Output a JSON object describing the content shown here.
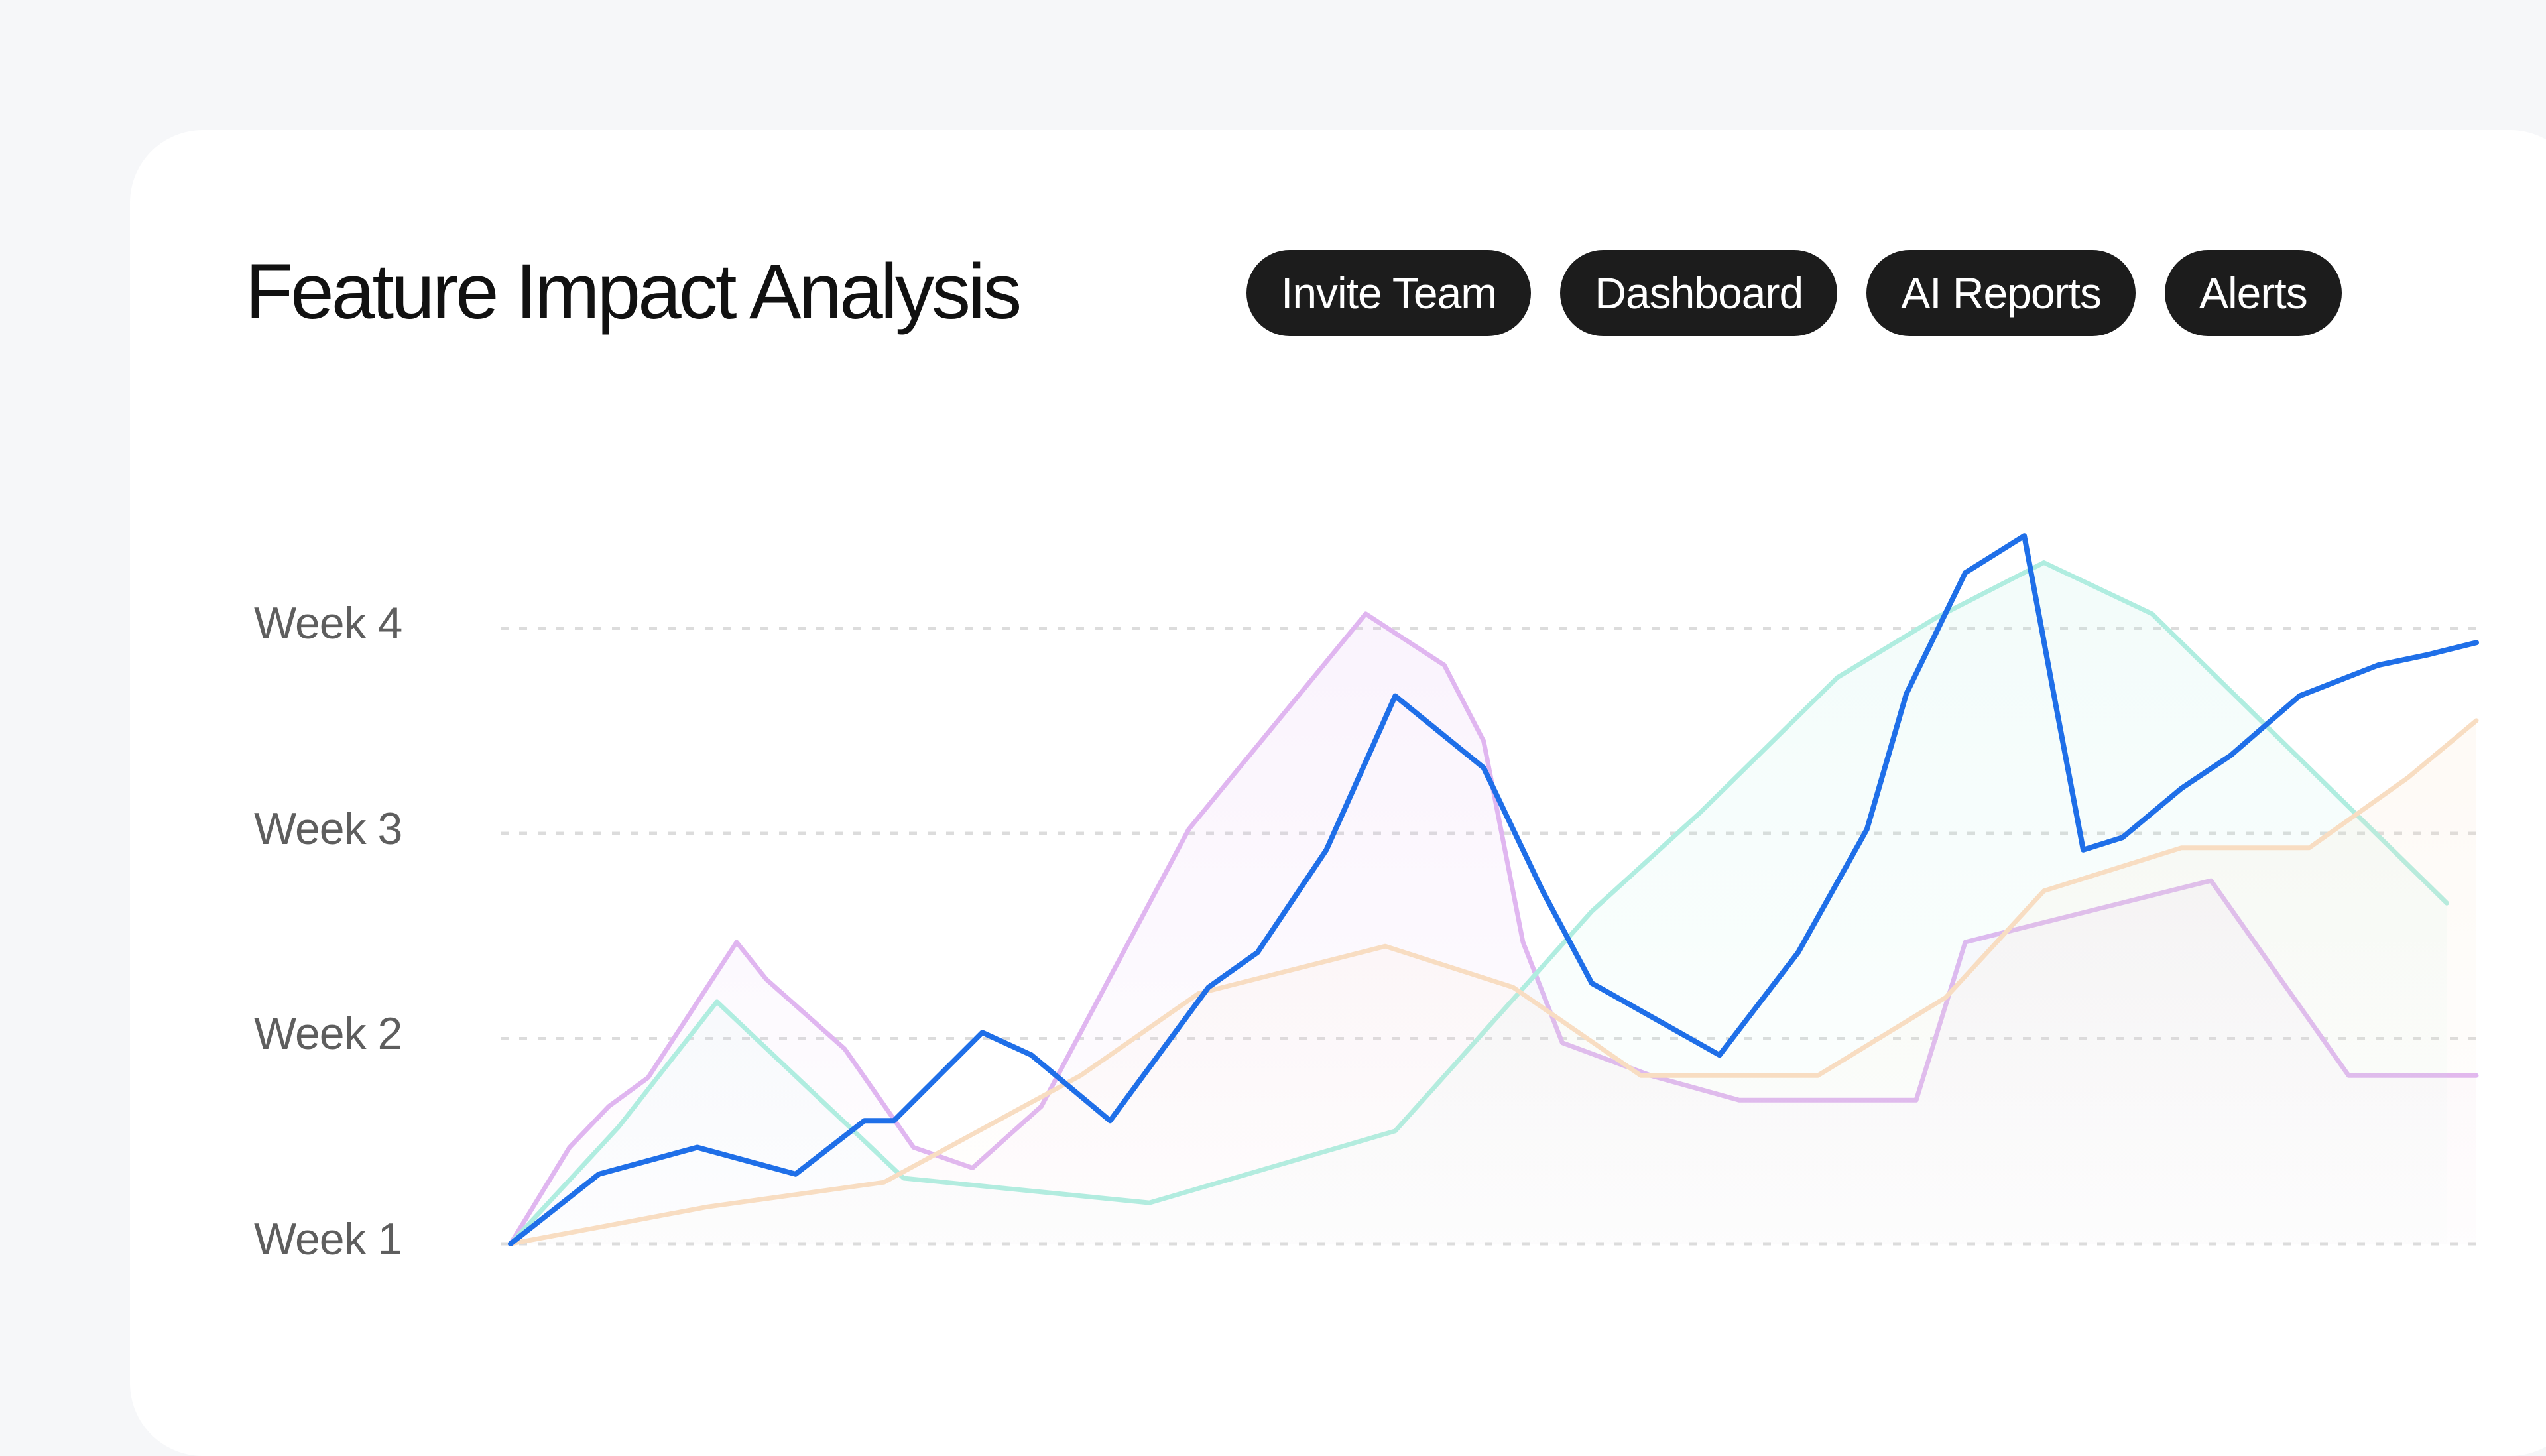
{
  "header": {
    "title": "Feature Impact Analysis",
    "buttons": [
      "Invite Team",
      "Dashboard",
      "AI Reports",
      "Alerts"
    ]
  },
  "colors": {
    "card": "#ffffff",
    "background": "#f6f7f9",
    "button_bg": "#1c1c1c",
    "button_text": "#ffffff",
    "gridline": "#dcdcdc"
  },
  "chart_data": {
    "type": "line",
    "title": "",
    "xlabel": "",
    "ylabel": "",
    "y_ticks": [
      "Week 1",
      "Week 2",
      "Week 3",
      "Week 4"
    ],
    "y_tick_values": [
      1,
      2,
      3,
      4
    ],
    "ylim": [
      1,
      4.45
    ],
    "xlim": [
      0,
      100
    ],
    "grid": "horizontal dashed",
    "legend": "none",
    "series": [
      {
        "color": "#e0b6f0",
        "fill": true,
        "x": [
          0,
          3,
          5,
          7,
          11.5,
          13,
          17,
          20.5,
          23.5,
          27,
          34.5,
          43.5,
          47.5,
          49.5,
          51.5,
          53.5,
          58,
          62.5,
          71,
          71.5,
          74,
          86.5,
          93.5,
          100
        ],
        "y": [
          1,
          1.47,
          1.67,
          1.81,
          2.47,
          2.29,
          1.95,
          1.47,
          1.37,
          1.67,
          3.02,
          4.07,
          3.82,
          3.45,
          2.47,
          1.98,
          1.82,
          1.7,
          1.7,
          1.7,
          2.47,
          2.77,
          1.82,
          1.82
        ]
      },
      {
        "color": "#b0ede0",
        "fill": true,
        "x": [
          0,
          5.5,
          10.5,
          20,
          32.5,
          45,
          55,
          60.5,
          67.5,
          72.5,
          78,
          83.5,
          98.5
        ],
        "y": [
          1,
          1.57,
          2.18,
          1.32,
          1.2,
          1.55,
          2.62,
          3.1,
          3.76,
          4.05,
          4.32,
          4.07,
          2.66
        ]
      },
      {
        "color": "#f8ddc2",
        "fill": true,
        "x": [
          0,
          10,
          19,
          29,
          35,
          44.5,
          51,
          57.5,
          66.5,
          73,
          78,
          85,
          91.5,
          96.5,
          100
        ],
        "y": [
          1,
          1.18,
          1.3,
          1.82,
          2.22,
          2.45,
          2.25,
          1.82,
          1.82,
          2.2,
          2.72,
          2.93,
          2.93,
          3.27,
          3.55
        ]
      },
      {
        "color": "#1f6fe8",
        "fill": false,
        "x": [
          0,
          4.5,
          9.5,
          14.5,
          18,
          19.5,
          24,
          26.5,
          30.5,
          35.5,
          38,
          41.5,
          45,
          49.5,
          52.5,
          55,
          61.5,
          65.5,
          69,
          71,
          74,
          77,
          78.5,
          80,
          82,
          85,
          87.5,
          91,
          95,
          97.5,
          100
        ],
        "y": [
          1,
          1.34,
          1.47,
          1.34,
          1.6,
          1.6,
          2.03,
          1.92,
          1.6,
          2.25,
          2.42,
          2.92,
          3.67,
          3.32,
          2.72,
          2.27,
          1.92,
          2.42,
          3.02,
          3.68,
          4.27,
          4.45,
          3.68,
          2.92,
          2.98,
          3.22,
          3.38,
          3.67,
          3.82,
          3.87,
          3.93
        ]
      }
    ]
  }
}
